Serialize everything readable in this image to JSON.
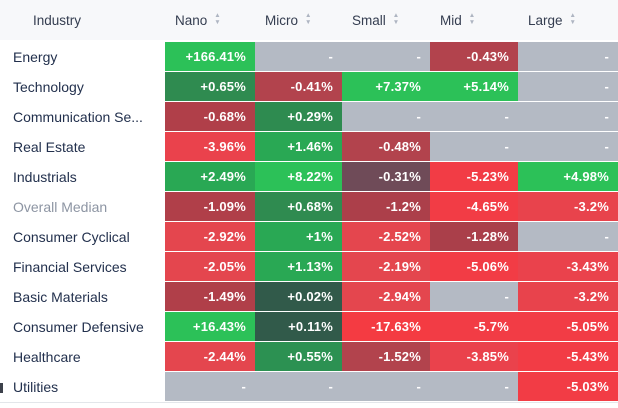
{
  "table": {
    "columns": [
      {
        "label": "Industry",
        "sortable": false
      },
      {
        "label": "Nano",
        "sortable": true
      },
      {
        "label": "Micro",
        "sortable": true
      },
      {
        "label": "Small",
        "sortable": true
      },
      {
        "label": "Mid",
        "sortable": true
      },
      {
        "label": "Large",
        "sortable": true
      }
    ],
    "empty_cell_text": "-",
    "rows": [
      {
        "industry": "Energy",
        "muted": false,
        "cells": [
          {
            "text": "+166.41%",
            "bg": "#2cc158"
          },
          {
            "text": "-",
            "bg": "#b4bac4"
          },
          {
            "text": "-",
            "bg": "#b4bac4"
          },
          {
            "text": "-0.43%",
            "bg": "#b2434d"
          },
          {
            "text": "-",
            "bg": "#b4bac4"
          }
        ]
      },
      {
        "industry": "Technology",
        "muted": false,
        "cells": [
          {
            "text": "+0.65%",
            "bg": "#2f8b50"
          },
          {
            "text": "-0.41%",
            "bg": "#b2434d"
          },
          {
            "text": "+7.37%",
            "bg": "#2cc158"
          },
          {
            "text": "+5.14%",
            "bg": "#2cc158"
          },
          {
            "text": "-",
            "bg": "#b4bac4"
          }
        ]
      },
      {
        "industry": "Communication Se...",
        "muted": false,
        "cells": [
          {
            "text": "-0.68%",
            "bg": "#b03f49"
          },
          {
            "text": "+0.29%",
            "bg": "#2e8b50"
          },
          {
            "text": "-",
            "bg": "#b4bac4"
          },
          {
            "text": "-",
            "bg": "#b4bac4"
          },
          {
            "text": "-",
            "bg": "#b4bac4"
          }
        ]
      },
      {
        "industry": "Real Estate",
        "muted": false,
        "cells": [
          {
            "text": "-3.96%",
            "bg": "#ea424c"
          },
          {
            "text": "+1.46%",
            "bg": "#29a854"
          },
          {
            "text": "-0.48%",
            "bg": "#b2434d"
          },
          {
            "text": "-",
            "bg": "#b4bac4"
          },
          {
            "text": "-",
            "bg": "#b4bac4"
          }
        ]
      },
      {
        "industry": "Industrials",
        "muted": false,
        "cells": [
          {
            "text": "+2.49%",
            "bg": "#29a854"
          },
          {
            "text": "+8.22%",
            "bg": "#2cc158"
          },
          {
            "text": "-0.31%",
            "bg": "#6f4b58"
          },
          {
            "text": "-5.23%",
            "bg": "#f23c45"
          },
          {
            "text": "+4.98%",
            "bg": "#2cc158"
          }
        ]
      },
      {
        "industry": "Overall Median",
        "muted": true,
        "cells": [
          {
            "text": "-1.09%",
            "bg": "#b03f49"
          },
          {
            "text": "+0.68%",
            "bg": "#2f8b50"
          },
          {
            "text": "-1.2%",
            "bg": "#ac3f4a"
          },
          {
            "text": "-4.65%",
            "bg": "#f23c45"
          },
          {
            "text": "-3.2%",
            "bg": "#e8434c"
          }
        ]
      },
      {
        "industry": "Consumer Cyclical",
        "muted": false,
        "cells": [
          {
            "text": "-2.92%",
            "bg": "#e4464e"
          },
          {
            "text": "+1%",
            "bg": "#29a854"
          },
          {
            "text": "-2.52%",
            "bg": "#e4464e"
          },
          {
            "text": "-1.28%",
            "bg": "#aa3f4a"
          },
          {
            "text": "-",
            "bg": "#b4bac4"
          }
        ]
      },
      {
        "industry": "Financial Services",
        "muted": false,
        "cells": [
          {
            "text": "-2.05%",
            "bg": "#e4464e"
          },
          {
            "text": "+1.13%",
            "bg": "#29a854"
          },
          {
            "text": "-2.19%",
            "bg": "#e4464e"
          },
          {
            "text": "-5.06%",
            "bg": "#f23c45"
          },
          {
            "text": "-3.43%",
            "bg": "#ea424c"
          }
        ]
      },
      {
        "industry": "Basic Materials",
        "muted": false,
        "cells": [
          {
            "text": "-1.49%",
            "bg": "#b03f49"
          },
          {
            "text": "+0.02%",
            "bg": "#315a4a"
          },
          {
            "text": "-2.94%",
            "bg": "#e4464e"
          },
          {
            "text": "-",
            "bg": "#b4bac4"
          },
          {
            "text": "-3.2%",
            "bg": "#e8434c"
          }
        ]
      },
      {
        "industry": "Consumer Defensive",
        "muted": false,
        "cells": [
          {
            "text": "+16.43%",
            "bg": "#2cc158"
          },
          {
            "text": "+0.11%",
            "bg": "#315a4a"
          },
          {
            "text": "-17.63%",
            "bg": "#f43b42"
          },
          {
            "text": "-5.7%",
            "bg": "#f23c45"
          },
          {
            "text": "-5.05%",
            "bg": "#f23c45"
          }
        ]
      },
      {
        "industry": "Healthcare",
        "muted": false,
        "cells": [
          {
            "text": "-2.44%",
            "bg": "#e4464e"
          },
          {
            "text": "+0.55%",
            "bg": "#2c9152"
          },
          {
            "text": "-1.52%",
            "bg": "#b2434d"
          },
          {
            "text": "-3.85%",
            "bg": "#ea424c"
          },
          {
            "text": "-5.43%",
            "bg": "#f23c45"
          }
        ]
      },
      {
        "industry": "Utilities",
        "muted": false,
        "cells": [
          {
            "text": "-",
            "bg": "#b4bac4"
          },
          {
            "text": "-",
            "bg": "#b4bac4"
          },
          {
            "text": "-",
            "bg": "#b4bac4"
          },
          {
            "text": "-",
            "bg": "#b4bac4"
          },
          {
            "text": "-5.03%",
            "bg": "#f23c45"
          }
        ]
      }
    ]
  },
  "icons": {
    "sort_up": "▲",
    "sort_down": "▼"
  },
  "palette": {
    "positive_strong": "#2cc158",
    "positive_medium": "#29a854",
    "positive_weak": "#2f8b50",
    "positive_near_zero": "#315a4a",
    "negative_near_zero": "#6f4b58",
    "negative_weak": "#b2434d",
    "negative_medium": "#e4464e",
    "negative_strong": "#f23c45",
    "no_data_gray": "#b4bac4",
    "header_bg": "#f7f8fa",
    "header_text": "#343d50",
    "row_label_text": "#22304d",
    "muted_label_text": "#8d95a3",
    "cell_text": "#ffffff"
  }
}
